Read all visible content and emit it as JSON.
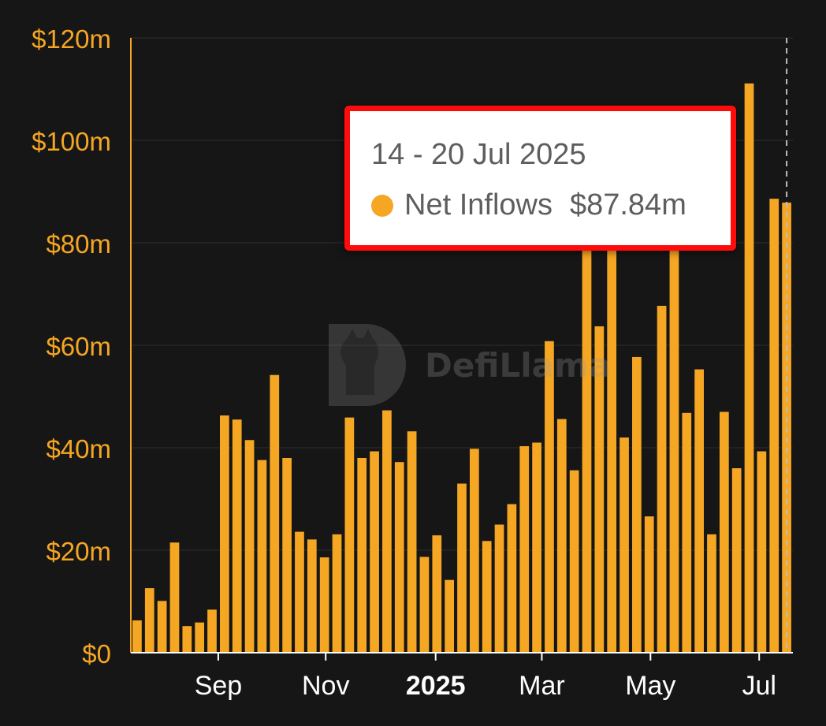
{
  "chart_data": {
    "type": "bar",
    "ylabel": "",
    "xlabel": "",
    "ylim": [
      0,
      120
    ],
    "y_ticks": [
      "$0",
      "$20m",
      "$40m",
      "$60m",
      "$80m",
      "$100m",
      "$120m"
    ],
    "y_tick_values": [
      0,
      20,
      40,
      60,
      80,
      100,
      120
    ],
    "x_ticks": [
      {
        "label": "Sep",
        "week_index": 6.5,
        "bold": false
      },
      {
        "label": "Nov",
        "week_index": 15.1,
        "bold": false
      },
      {
        "label": "2025",
        "week_index": 23.9,
        "bold": true
      },
      {
        "label": "Mar",
        "week_index": 32.4,
        "bold": false
      },
      {
        "label": "May",
        "week_index": 41.1,
        "bold": false
      },
      {
        "label": "Jul",
        "week_index": 49.8,
        "bold": false
      }
    ],
    "series": [
      {
        "name": "Net Inflows",
        "color": "#f5a623",
        "values": [
          6.3,
          12.6,
          10.1,
          21.5,
          5.2,
          5.9,
          8.4,
          46.3,
          45.5,
          41.5,
          37.6,
          54.2,
          38.0,
          23.6,
          22.1,
          18.6,
          23.1,
          45.9,
          38.0,
          39.3,
          47.3,
          37.2,
          43.2,
          18.7,
          22.9,
          14.2,
          33.0,
          39.8,
          21.8,
          25.0,
          29.0,
          40.3,
          41.0,
          60.8,
          45.6,
          35.6,
          80.0,
          63.7,
          80.0,
          42.0,
          57.7,
          26.6,
          67.7,
          80.0,
          46.8,
          55.3,
          23.1,
          47.0,
          36.0,
          111.1,
          39.3,
          88.6,
          87.84
        ]
      }
    ],
    "highlight_index": 52
  },
  "tooltip": {
    "date": "14 - 20 Jul 2025",
    "series_label": "Net Inflows",
    "value": "$87.84m"
  },
  "watermark": {
    "text": "DefiLlama"
  },
  "colors": {
    "background": "#161616",
    "bar": "#f5a623",
    "axis_text": "#f5a623",
    "x_tick_text": "#ffffff",
    "gridline": "#262626",
    "tooltip_border": "#ff0b0b"
  }
}
